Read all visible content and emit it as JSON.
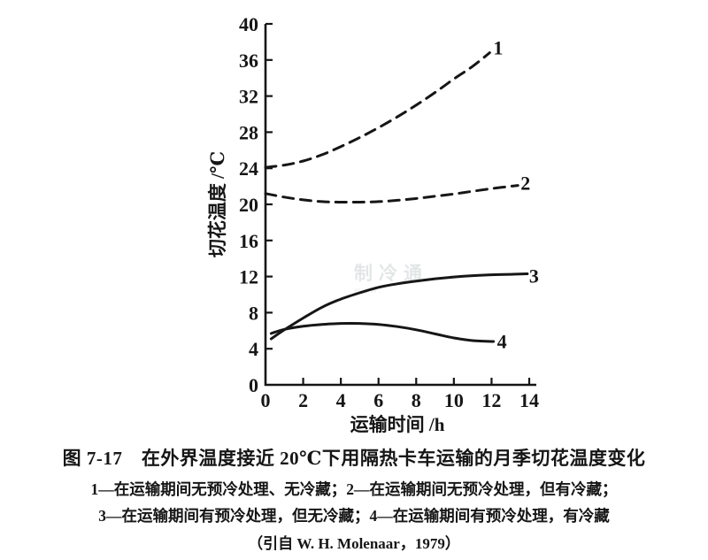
{
  "figure": {
    "caption_title": "图 7-17　在外界温度接近 20℃下用隔热卡车运输的月季切花温度变化",
    "legend_line1": "1—在运输期间无预冷处理、无冷藏；2—在运输期间无预冷处理，但有冷藏；",
    "legend_line2": "3—在运输期间有预冷处理，但无冷藏；4—在运输期间有预冷处理，有冷藏",
    "source_line": "（引自 W. H. Molenaar，1979）",
    "watermark_main": "制冷通",
    "watermark_sub": "www."
  },
  "chart_data": {
    "type": "line",
    "title": "图 7-17 在外界温度接近 20℃下用隔热卡车运输的月季切花温度变化",
    "xlabel": "运输时间 /h",
    "ylabel": "切花温度 /℃",
    "xlim": [
      0,
      14
    ],
    "ylim": [
      0,
      40
    ],
    "xticks": [
      0,
      2,
      4,
      6,
      8,
      10,
      12,
      14
    ],
    "yticks": [
      0,
      4,
      8,
      12,
      16,
      20,
      24,
      28,
      32,
      36,
      40
    ],
    "grid": false,
    "line_color": "#161616",
    "series": [
      {
        "name": "1",
        "label": "1",
        "line_style": "dashed",
        "description": "在运输期间无预冷处理、无冷藏",
        "label_pos": [
          12.35,
          37.4
        ],
        "points": [
          [
            0,
            24.1
          ],
          [
            1,
            24.35
          ],
          [
            2,
            24.8
          ],
          [
            3,
            25.5
          ],
          [
            4,
            26.4
          ],
          [
            5,
            27.4
          ],
          [
            6,
            28.5
          ],
          [
            7,
            29.7
          ],
          [
            8,
            31.0
          ],
          [
            9,
            32.4
          ],
          [
            10,
            33.9
          ],
          [
            11,
            35.3
          ],
          [
            11.9,
            36.8
          ]
        ]
      },
      {
        "name": "2",
        "label": "2",
        "line_style": "dashed",
        "description": "在运输期间无预冷处理，但有冷藏",
        "label_pos": [
          13.8,
          22.4
        ],
        "points": [
          [
            0,
            21.2
          ],
          [
            1,
            20.8
          ],
          [
            2,
            20.5
          ],
          [
            3,
            20.3
          ],
          [
            4,
            20.25
          ],
          [
            5,
            20.25
          ],
          [
            6,
            20.3
          ],
          [
            7,
            20.45
          ],
          [
            8,
            20.65
          ],
          [
            9,
            20.9
          ],
          [
            10,
            21.15
          ],
          [
            11,
            21.45
          ],
          [
            12,
            21.75
          ],
          [
            13,
            22.0
          ],
          [
            13.4,
            22.1
          ]
        ]
      },
      {
        "name": "3",
        "label": "3",
        "line_style": "solid",
        "description": "在运输期间有预冷处理，但无冷藏",
        "label_pos": [
          14.25,
          12.1
        ],
        "points": [
          [
            0.3,
            5.1
          ],
          [
            1,
            6.1
          ],
          [
            2,
            7.4
          ],
          [
            3,
            8.6
          ],
          [
            4,
            9.5
          ],
          [
            5,
            10.2
          ],
          [
            6,
            10.8
          ],
          [
            7,
            11.2
          ],
          [
            8,
            11.5
          ],
          [
            9,
            11.75
          ],
          [
            10,
            11.95
          ],
          [
            11,
            12.1
          ],
          [
            12,
            12.2
          ],
          [
            13,
            12.25
          ],
          [
            13.9,
            12.3
          ]
        ]
      },
      {
        "name": "4",
        "label": "4",
        "line_style": "solid",
        "description": "在运输期间有预冷处理，有冷藏",
        "label_pos": [
          12.55,
          4.85
        ],
        "points": [
          [
            0.3,
            5.7
          ],
          [
            1,
            6.15
          ],
          [
            2,
            6.5
          ],
          [
            3,
            6.7
          ],
          [
            4,
            6.8
          ],
          [
            5,
            6.8
          ],
          [
            6,
            6.7
          ],
          [
            7,
            6.45
          ],
          [
            8,
            6.1
          ],
          [
            9,
            5.65
          ],
          [
            10,
            5.2
          ],
          [
            11,
            4.9
          ],
          [
            12.1,
            4.8
          ]
        ]
      }
    ]
  }
}
